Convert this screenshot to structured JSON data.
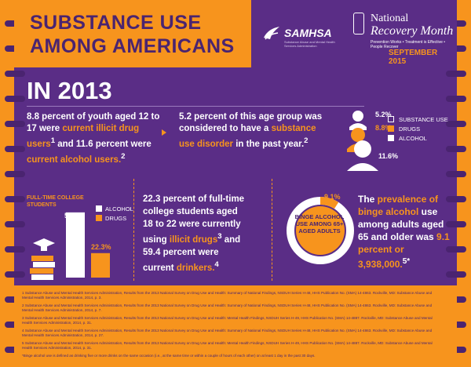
{
  "header": {
    "title": "SUBSTANCE USE AMONG AMERICANS",
    "samhsa": "SAMHSA",
    "samhsa_sub": "Substance Abuse and Mental Health Services Administration",
    "nrm_line1": "National",
    "nrm_line2": "Recovery Month",
    "nrm_line3": "Prevention Works • Treatment is Effective • People Recover",
    "nrm_date": "SEPTEMBER 2015"
  },
  "year": "IN 2013",
  "stat1": {
    "a": "8.8 percent of youth aged 12 to 17 were ",
    "b": "current illicit drug users",
    "sup1": "1",
    "c": " and 11.6 percent were ",
    "d": "current alcohol users.",
    "sup2": "2"
  },
  "stat2": {
    "a": "5.2 percent of this age group was considered to have a ",
    "b": "substance use disorder",
    "c": " in the past year.",
    "sup": "2"
  },
  "people": {
    "pct_sud": "5.2%",
    "pct_drugs": "8.8%",
    "pct_alcohol": "11.6%",
    "legend": [
      "SUBSTANCE USE",
      "DRUGS",
      "ALCOHOL"
    ]
  },
  "college": {
    "title": "FULL-TIME COLLEGE STUDENTS",
    "alcohol_pct": "59.4%",
    "drugs_pct": "22.3%",
    "legend": [
      "ALCOHOL",
      "DRUGS"
    ]
  },
  "chart_data": {
    "type": "bar",
    "title": "FULL-TIME COLLEGE STUDENTS",
    "categories": [
      "ALCOHOL",
      "DRUGS"
    ],
    "values": [
      59.4,
      22.3
    ]
  },
  "stat3": {
    "a": "22.3 percent of full-time college students aged 18 to 22 were currently using ",
    "b": "illicit drugs",
    "sup1": "3",
    "c": " and 59.4 percent were current ",
    "d": "drinkers.",
    "sup2": "4"
  },
  "binge": {
    "pct": "9.1%",
    "label": "BINGE ALCOHOL USE AMONG 65+ AGED ADULTS",
    "fraction": 0.091
  },
  "stat4": {
    "a": "The ",
    "b": "prevalence of binge alcohol",
    "c": " use among adults aged 65 and older was ",
    "d": "9.1 percent or 3,938,000.",
    "sup": "5*"
  },
  "footnotes": [
    "1 Substance Abuse and Mental Health Services Administration, Results from the 2013 National Survey on Drug Use and Health: Summary of National Findings, NSDUH Series H-48, HHS Publication No. (SMA) 14-4863. Rockville, MD: Substance Abuse and Mental Health Services Administration, 2014, p. 3.",
    "2 Substance Abuse and Mental Health Services Administration, Results from the 2013 National Survey on Drug Use and Health: Summary of National Findings, NSDUH Series H-48, HHS Publication No. (SMA) 14-4863. Rockville, MD: Substance Abuse and Mental Health Services Administration, 2014, p. 7.",
    "3 Substance Abuse and Mental Health Services Administration, Results from the 2013 National Survey on Drug Use and Health: Mental Health Findings, NSDUH Series H-49, HHS Publication No. (SMA) 14-4887. Rockville, MD: Substance Abuse and Mental Health Services Administration, 2014, p. 31.",
    "4 Substance Abuse and Mental Health Services Administration, Results from the 2013 National Survey on Drug Use and Health: Summary of National Findings, NSDUH Series H-48, HHS Publication No. (SMA) 14-4863. Rockville, MD: Substance Abuse and Mental Health Services Administration, 2014, p. 27.",
    "5 Substance Abuse and Mental Health Services Administration, Results from the 2013 National Survey on Drug Use and Health: Mental Health Findings, NSDUH Series H-49, HHS Publication No. (SMA) 14-4887. Rockville, MD: Substance Abuse and Mental Health Services Administration, 2014, p. 31.",
    "*Binge alcohol use is defined as drinking five or more drinks on the same occasion (i.e., at the same time or within a couple of hours of each other) on at least 1 day in the past 30 days."
  ],
  "colors": {
    "purple": "#5a2d86",
    "orange": "#f7941d",
    "white": "#ffffff"
  }
}
